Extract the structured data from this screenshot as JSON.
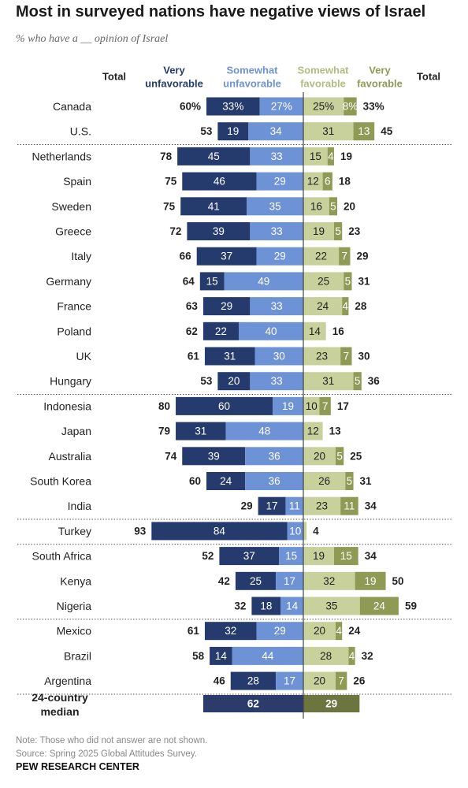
{
  "header": {
    "title": "Most in surveyed nations have negative views of Israel",
    "subtitle": "% who have a __ opinion of Israel"
  },
  "chart_data": {
    "type": "bar",
    "stacked": "diverging",
    "columns": {
      "total_left": "Total",
      "very_unfavorable": "Very unfavorable",
      "somewhat_unfavorable": "Somewhat unfavorable",
      "somewhat_favorable": "Somewhat favorable",
      "very_favorable": "Very favorable",
      "total_right": "Total"
    },
    "colors": {
      "very_unfavorable": "#253b6e",
      "somewhat_unfavorable": "#6d93d6",
      "somewhat_favorable": "#c8d09b",
      "very_favorable": "#8f9a55",
      "median_very": "#2b3c6a",
      "median_fav": "#6c7440"
    },
    "groups": [
      [
        {
          "country": "Canada",
          "unfav_total": "60%",
          "very_unfav": 33,
          "very_unfav_label": "33%",
          "somewhat_unfav": 27,
          "somewhat_unfav_label": "27%",
          "somewhat_fav": 25,
          "somewhat_fav_label": "25%",
          "very_fav": 8,
          "very_fav_label": "8%",
          "fav_total": "33%"
        },
        {
          "country": "U.S.",
          "unfav_total": "53",
          "very_unfav": 19,
          "very_unfav_label": "19",
          "somewhat_unfav": 34,
          "somewhat_unfav_label": "34",
          "somewhat_fav": 31,
          "somewhat_fav_label": "31",
          "very_fav": 13,
          "very_fav_label": "13",
          "fav_total": "45"
        }
      ],
      [
        {
          "country": "Netherlands",
          "unfav_total": "78",
          "very_unfav": 45,
          "very_unfav_label": "45",
          "somewhat_unfav": 33,
          "somewhat_unfav_label": "33",
          "somewhat_fav": 15,
          "somewhat_fav_label": "15",
          "very_fav": 4,
          "very_fav_label": "4",
          "fav_total": "19"
        },
        {
          "country": "Spain",
          "unfav_total": "75",
          "very_unfav": 46,
          "very_unfav_label": "46",
          "somewhat_unfav": 29,
          "somewhat_unfav_label": "29",
          "somewhat_fav": 12,
          "somewhat_fav_label": "12",
          "very_fav": 6,
          "very_fav_label": "6",
          "fav_total": "18"
        },
        {
          "country": "Sweden",
          "unfav_total": "75",
          "very_unfav": 41,
          "very_unfav_label": "41",
          "somewhat_unfav": 35,
          "somewhat_unfav_label": "35",
          "somewhat_fav": 16,
          "somewhat_fav_label": "16",
          "very_fav": 5,
          "very_fav_label": "5",
          "fav_total": "20"
        },
        {
          "country": "Greece",
          "unfav_total": "72",
          "very_unfav": 39,
          "very_unfav_label": "39",
          "somewhat_unfav": 33,
          "somewhat_unfav_label": "33",
          "somewhat_fav": 19,
          "somewhat_fav_label": "19",
          "very_fav": 5,
          "very_fav_label": "5",
          "fav_total": "23"
        },
        {
          "country": "Italy",
          "unfav_total": "66",
          "very_unfav": 37,
          "very_unfav_label": "37",
          "somewhat_unfav": 29,
          "somewhat_unfav_label": "29",
          "somewhat_fav": 22,
          "somewhat_fav_label": "22",
          "very_fav": 7,
          "very_fav_label": "7",
          "fav_total": "29"
        },
        {
          "country": "Germany",
          "unfav_total": "64",
          "very_unfav": 15,
          "very_unfav_label": "15",
          "somewhat_unfav": 49,
          "somewhat_unfav_label": "49",
          "somewhat_fav": 25,
          "somewhat_fav_label": "25",
          "very_fav": 5,
          "very_fav_label": "5",
          "fav_total": "31"
        },
        {
          "country": "France",
          "unfav_total": "63",
          "very_unfav": 29,
          "very_unfav_label": "29",
          "somewhat_unfav": 33,
          "somewhat_unfav_label": "33",
          "somewhat_fav": 24,
          "somewhat_fav_label": "24",
          "very_fav": 4,
          "very_fav_label": "4",
          "fav_total": "28"
        },
        {
          "country": "Poland",
          "unfav_total": "62",
          "very_unfav": 22,
          "very_unfav_label": "22",
          "somewhat_unfav": 40,
          "somewhat_unfav_label": "40",
          "somewhat_fav": 14,
          "somewhat_fav_label": "14",
          "very_fav": 0,
          "very_fav_label": "",
          "fav_total": "16"
        },
        {
          "country": "UK",
          "unfav_total": "61",
          "very_unfav": 31,
          "very_unfav_label": "31",
          "somewhat_unfav": 30,
          "somewhat_unfav_label": "30",
          "somewhat_fav": 23,
          "somewhat_fav_label": "23",
          "very_fav": 7,
          "very_fav_label": "7",
          "fav_total": "30"
        },
        {
          "country": "Hungary",
          "unfav_total": "53",
          "very_unfav": 20,
          "very_unfav_label": "20",
          "somewhat_unfav": 33,
          "somewhat_unfav_label": "33",
          "somewhat_fav": 31,
          "somewhat_fav_label": "31",
          "very_fav": 5,
          "very_fav_label": "5",
          "fav_total": "36"
        }
      ],
      [
        {
          "country": "Indonesia",
          "unfav_total": "80",
          "very_unfav": 60,
          "very_unfav_label": "60",
          "somewhat_unfav": 19,
          "somewhat_unfav_label": "19",
          "somewhat_fav": 10,
          "somewhat_fav_label": "10",
          "very_fav": 7,
          "very_fav_label": "7",
          "fav_total": "17"
        },
        {
          "country": "Japan",
          "unfav_total": "79",
          "very_unfav": 31,
          "very_unfav_label": "31",
          "somewhat_unfav": 48,
          "somewhat_unfav_label": "48",
          "somewhat_fav": 12,
          "somewhat_fav_label": "12",
          "very_fav": 0,
          "very_fav_label": "",
          "fav_total": "13"
        },
        {
          "country": "Australia",
          "unfav_total": "74",
          "very_unfav": 39,
          "very_unfav_label": "39",
          "somewhat_unfav": 36,
          "somewhat_unfav_label": "36",
          "somewhat_fav": 20,
          "somewhat_fav_label": "20",
          "very_fav": 5,
          "very_fav_label": "5",
          "fav_total": "25"
        },
        {
          "country": "South Korea",
          "unfav_total": "60",
          "very_unfav": 24,
          "very_unfav_label": "24",
          "somewhat_unfav": 36,
          "somewhat_unfav_label": "36",
          "somewhat_fav": 26,
          "somewhat_fav_label": "26",
          "very_fav": 5,
          "very_fav_label": "5",
          "fav_total": "31"
        },
        {
          "country": "India",
          "unfav_total": "29",
          "very_unfav": 17,
          "very_unfav_label": "17",
          "somewhat_unfav": 11,
          "somewhat_unfav_label": "11",
          "somewhat_fav": 23,
          "somewhat_fav_label": "23",
          "very_fav": 11,
          "very_fav_label": "11",
          "fav_total": "34"
        }
      ],
      [
        {
          "country": "Turkey",
          "unfav_total": "93",
          "very_unfav": 84,
          "very_unfav_label": "84",
          "somewhat_unfav": 10,
          "somewhat_unfav_label": "10",
          "somewhat_fav": 2,
          "somewhat_fav_label": "",
          "very_fav": 0,
          "very_fav_label": "",
          "fav_total": "4"
        }
      ],
      [
        {
          "country": "South Africa",
          "unfav_total": "52",
          "very_unfav": 37,
          "very_unfav_label": "37",
          "somewhat_unfav": 15,
          "somewhat_unfav_label": "15",
          "somewhat_fav": 19,
          "somewhat_fav_label": "19",
          "very_fav": 15,
          "very_fav_label": "15",
          "fav_total": "34"
        },
        {
          "country": "Kenya",
          "unfav_total": "42",
          "very_unfav": 25,
          "very_unfav_label": "25",
          "somewhat_unfav": 17,
          "somewhat_unfav_label": "17",
          "somewhat_fav": 32,
          "somewhat_fav_label": "32",
          "very_fav": 19,
          "very_fav_label": "19",
          "fav_total": "50"
        },
        {
          "country": "Nigeria",
          "unfav_total": "32",
          "very_unfav": 18,
          "very_unfav_label": "18",
          "somewhat_unfav": 14,
          "somewhat_unfav_label": "14",
          "somewhat_fav": 35,
          "somewhat_fav_label": "35",
          "very_fav": 24,
          "very_fav_label": "24",
          "fav_total": "59"
        }
      ],
      [
        {
          "country": "Mexico",
          "unfav_total": "61",
          "very_unfav": 32,
          "very_unfav_label": "32",
          "somewhat_unfav": 29,
          "somewhat_unfav_label": "29",
          "somewhat_fav": 20,
          "somewhat_fav_label": "20",
          "very_fav": 4,
          "very_fav_label": "4",
          "fav_total": "24"
        },
        {
          "country": "Brazil",
          "unfav_total": "58",
          "very_unfav": 14,
          "very_unfav_label": "14",
          "somewhat_unfav": 44,
          "somewhat_unfav_label": "44",
          "somewhat_fav": 28,
          "somewhat_fav_label": "28",
          "very_fav": 4,
          "very_fav_label": "4",
          "fav_total": "32"
        },
        {
          "country": "Argentina",
          "unfav_total": "46",
          "very_unfav": 28,
          "very_unfav_label": "28",
          "somewhat_unfav": 17,
          "somewhat_unfav_label": "17",
          "somewhat_fav": 20,
          "somewhat_fav_label": "20",
          "very_fav": 7,
          "very_fav_label": "7",
          "fav_total": "26"
        }
      ]
    ],
    "median": {
      "label_line1": "24-country",
      "label_line2": "median",
      "unfavorable": 62,
      "unfavorable_label": "62",
      "favorable": 29,
      "favorable_label": "29"
    }
  },
  "notes": {
    "note": "Note: Those who did not answer are not shown.",
    "source": "Source: Spring 2025 Global Attitudes Survey."
  },
  "footer": "PEW RESEARCH CENTER"
}
